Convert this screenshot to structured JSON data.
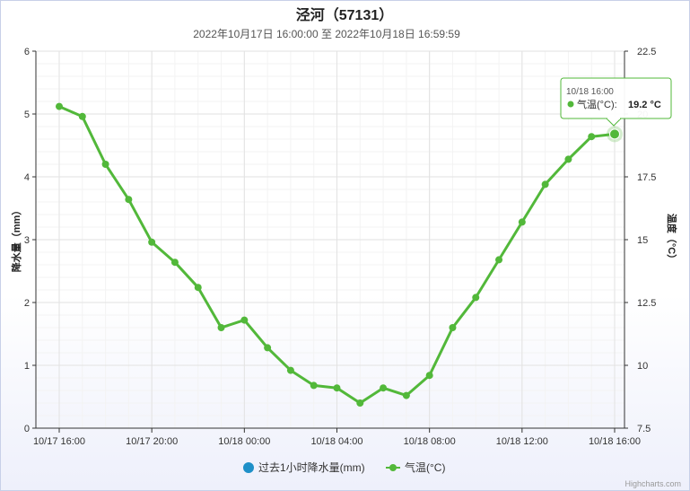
{
  "chart_data": {
    "type": "line",
    "title": "泾河（57131）",
    "subtitle": "2022年10月17日 16:00:00 至 2022年10月18日 16:59:59",
    "x_tick_labels": [
      "10/17 16:00",
      "10/17 20:00",
      "10/18 00:00",
      "10/18 04:00",
      "10/18 08:00",
      "10/18 12:00",
      "10/18 16:00"
    ],
    "x_hours": [
      0,
      1,
      2,
      3,
      4,
      5,
      6,
      7,
      8,
      9,
      10,
      11,
      12,
      13,
      14,
      15,
      16,
      17,
      18,
      19,
      20,
      21,
      22,
      23,
      24
    ],
    "y_left": {
      "label": "降水量（mm）",
      "ticks": [
        0,
        1,
        2,
        3,
        4,
        5,
        6
      ],
      "range": [
        0,
        6
      ]
    },
    "y_right": {
      "label": "温度（°C）",
      "ticks": [
        "7.5",
        "10",
        "12.5",
        "15",
        "17.5",
        "20",
        "22.5"
      ],
      "range": [
        7.5,
        22.5
      ]
    },
    "series": [
      {
        "name": "过去1小时降水量(mm)",
        "color": "#1e90c8",
        "axis": "left",
        "values": []
      },
      {
        "name": "气温(°C)",
        "color": "#52b83a",
        "axis": "right",
        "values": [
          20.3,
          19.9,
          18.0,
          16.6,
          14.9,
          14.1,
          13.1,
          11.5,
          11.8,
          10.7,
          9.8,
          9.2,
          9.1,
          8.5,
          9.1,
          8.8,
          9.6,
          11.5,
          12.7,
          14.2,
          15.7,
          17.2,
          18.2,
          19.1,
          19.2
        ]
      }
    ],
    "grid": true,
    "legend_position": "bottom-center",
    "tooltip": {
      "time": "10/18 16:00",
      "label": "气温(°C):",
      "value": "19.2 °C"
    },
    "credits": "Highcharts.com"
  }
}
